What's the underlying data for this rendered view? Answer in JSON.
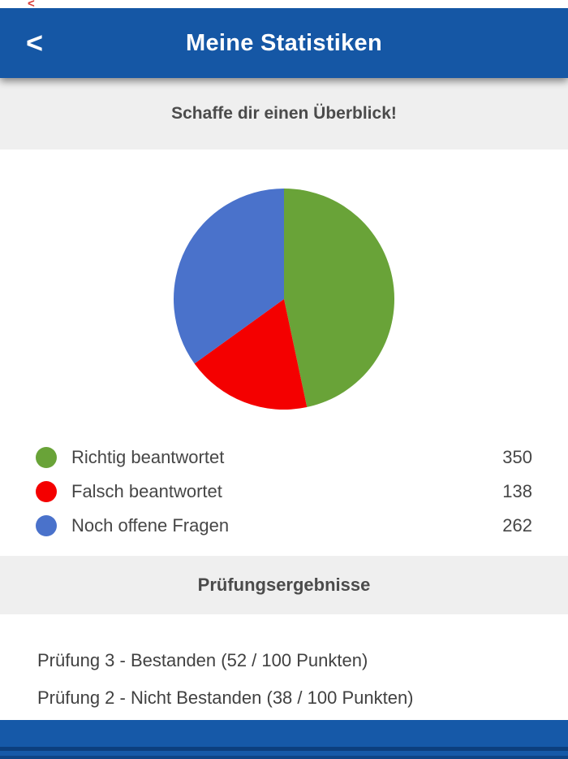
{
  "status": {
    "back_hint": "<"
  },
  "header": {
    "back_label": "<",
    "title": "Meine Statistiken"
  },
  "overview": {
    "subtitle": "Schaffe dir einen Überblick!"
  },
  "chart_data": {
    "type": "pie",
    "labels": [
      "Richtig beantwortet",
      "Falsch beantwortet",
      "Noch offene Fragen"
    ],
    "values": [
      350,
      138,
      262
    ],
    "colors": [
      "#69a338",
      "#f40000",
      "#4a72cb"
    ],
    "start_angle_deg": 0,
    "direction": "clockwise",
    "title": "",
    "legend_position": "below"
  },
  "legend": {
    "items": [
      {
        "label": "Richtig beantwortet",
        "value": "350",
        "color": "#69a338"
      },
      {
        "label": "Falsch beantwortet",
        "value": "138",
        "color": "#f40000"
      },
      {
        "label": "Noch offene Fragen",
        "value": "262",
        "color": "#4a72cb"
      }
    ]
  },
  "results": {
    "section_title": "Prüfungsergebnisse",
    "items": [
      {
        "text": "Prüfung 3 - Bestanden (52 / 100 Punkten)"
      },
      {
        "text": "Prüfung 2 - Nicht Bestanden (38 / 100 Punkten)"
      }
    ]
  },
  "colors": {
    "header_blue": "#1557a5",
    "footer_blue": "#1659a8",
    "footer_dark_stripe": "#0c3f7e",
    "band_gray": "#efefef",
    "text_dark": "#464646"
  }
}
